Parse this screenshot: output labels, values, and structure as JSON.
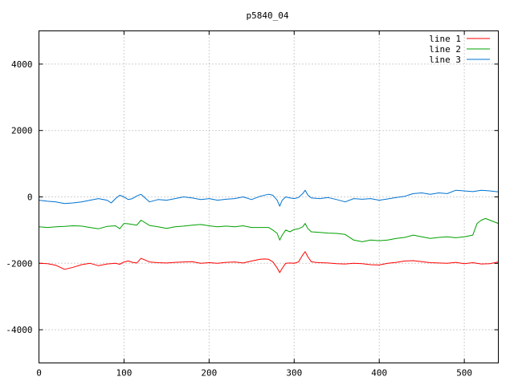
{
  "chart_data": {
    "type": "line",
    "title": "p5840_04",
    "xlim": [
      0,
      540
    ],
    "ylim": [
      -5000,
      5000
    ],
    "x_ticks": [
      0,
      100,
      200,
      300,
      400,
      500
    ],
    "y_ticks": [
      -4000,
      -2000,
      0,
      2000,
      4000
    ],
    "grid": true,
    "legend_position": "top-right",
    "series": [
      {
        "name": "line 1",
        "color": "#ff0000",
        "x": [
          0,
          10,
          20,
          30,
          40,
          50,
          60,
          70,
          80,
          90,
          95,
          100,
          105,
          110,
          115,
          120,
          130,
          140,
          150,
          160,
          170,
          180,
          190,
          200,
          210,
          220,
          230,
          240,
          250,
          260,
          265,
          270,
          275,
          280,
          283,
          286,
          290,
          295,
          300,
          305,
          310,
          313,
          316,
          320,
          325,
          330,
          340,
          350,
          360,
          370,
          380,
          390,
          400,
          410,
          420,
          430,
          440,
          450,
          460,
          470,
          480,
          490,
          500,
          510,
          520,
          530,
          540
        ],
        "y": [
          -2000,
          -2010,
          -2060,
          -2180,
          -2120,
          -2040,
          -2000,
          -2070,
          -2020,
          -2000,
          -2030,
          -1960,
          -1930,
          -1970,
          -1990,
          -1850,
          -1960,
          -1980,
          -1990,
          -1970,
          -1960,
          -1950,
          -2000,
          -1980,
          -2000,
          -1970,
          -1960,
          -1990,
          -1930,
          -1880,
          -1870,
          -1880,
          -1960,
          -2140,
          -2280,
          -2150,
          -2000,
          -1990,
          -2000,
          -1960,
          -1750,
          -1650,
          -1800,
          -1950,
          -1970,
          -1980,
          -1990,
          -2010,
          -2020,
          -2000,
          -2010,
          -2040,
          -2050,
          -2000,
          -1970,
          -1930,
          -1920,
          -1950,
          -1980,
          -1990,
          -2000,
          -1970,
          -2010,
          -1980,
          -2020,
          -2010,
          -1960
        ]
      },
      {
        "name": "line 2",
        "color": "#00a000",
        "x": [
          0,
          10,
          20,
          30,
          40,
          50,
          60,
          70,
          80,
          90,
          95,
          100,
          105,
          110,
          115,
          120,
          130,
          140,
          150,
          160,
          170,
          180,
          190,
          200,
          210,
          220,
          230,
          240,
          250,
          260,
          270,
          275,
          280,
          283,
          286,
          290,
          295,
          300,
          305,
          310,
          313,
          316,
          320,
          330,
          340,
          350,
          360,
          370,
          380,
          390,
          400,
          410,
          420,
          430,
          440,
          450,
          460,
          470,
          480,
          490,
          500,
          510,
          515,
          520,
          525,
          530,
          540
        ],
        "y": [
          -900,
          -920,
          -900,
          -890,
          -870,
          -880,
          -920,
          -960,
          -890,
          -870,
          -960,
          -800,
          -810,
          -830,
          -850,
          -700,
          -860,
          -900,
          -950,
          -900,
          -880,
          -850,
          -830,
          -870,
          -900,
          -880,
          -900,
          -870,
          -920,
          -920,
          -920,
          -1000,
          -1100,
          -1300,
          -1150,
          -1000,
          -1050,
          -980,
          -960,
          -900,
          -800,
          -950,
          -1050,
          -1070,
          -1090,
          -1100,
          -1130,
          -1300,
          -1350,
          -1300,
          -1320,
          -1300,
          -1250,
          -1220,
          -1150,
          -1200,
          -1250,
          -1220,
          -1200,
          -1230,
          -1200,
          -1150,
          -800,
          -700,
          -650,
          -700,
          -800
        ]
      },
      {
        "name": "line 3",
        "color": "#0072d0",
        "x": [
          0,
          10,
          20,
          30,
          40,
          50,
          60,
          70,
          80,
          85,
          90,
          95,
          100,
          105,
          110,
          115,
          120,
          130,
          140,
          150,
          160,
          170,
          180,
          190,
          200,
          210,
          220,
          230,
          240,
          250,
          260,
          270,
          275,
          280,
          283,
          286,
          290,
          295,
          300,
          305,
          310,
          313,
          316,
          320,
          330,
          340,
          350,
          360,
          370,
          380,
          390,
          400,
          410,
          420,
          430,
          440,
          450,
          460,
          470,
          480,
          490,
          500,
          510,
          520,
          530,
          540
        ],
        "y": [
          -100,
          -130,
          -150,
          -200,
          -180,
          -150,
          -100,
          -50,
          -100,
          -180,
          -50,
          50,
          0,
          -80,
          -50,
          30,
          80,
          -150,
          -80,
          -100,
          -50,
          0,
          -30,
          -80,
          -50,
          -100,
          -70,
          -50,
          0,
          -80,
          20,
          80,
          50,
          -100,
          -280,
          -100,
          0,
          -30,
          -50,
          -20,
          100,
          200,
          60,
          -30,
          -50,
          -20,
          -80,
          -150,
          -50,
          -70,
          -50,
          -100,
          -60,
          -20,
          20,
          100,
          120,
          80,
          120,
          100,
          200,
          180,
          160,
          200,
          180,
          150
        ]
      }
    ]
  }
}
